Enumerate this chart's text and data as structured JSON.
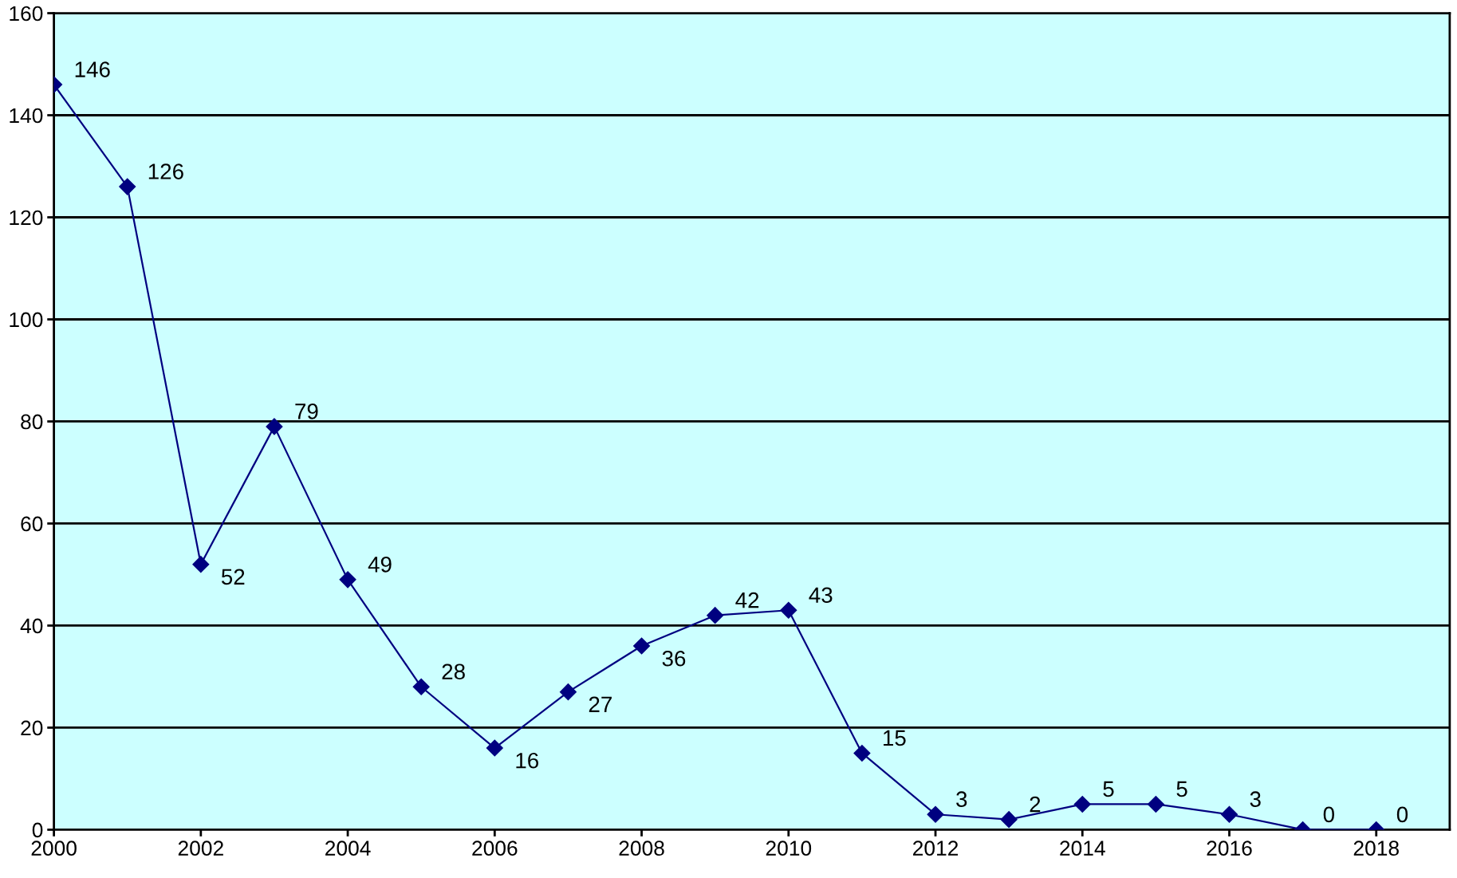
{
  "chart_data": {
    "type": "line",
    "x": [
      2000,
      2001,
      2002,
      2003,
      2004,
      2005,
      2006,
      2007,
      2008,
      2009,
      2010,
      2011,
      2012,
      2013,
      2014,
      2015,
      2016,
      2017,
      2018
    ],
    "series": [
      {
        "color": "#000080",
        "values": [
          146,
          126,
          52,
          79,
          49,
          28,
          16,
          27,
          36,
          42,
          43,
          15,
          3,
          2,
          5,
          5,
          3,
          0,
          0
        ]
      }
    ],
    "xlim": [
      2000,
      2019
    ],
    "xticks": [
      2000,
      2002,
      2004,
      2006,
      2008,
      2010,
      2012,
      2014,
      2016,
      2018
    ],
    "ylim": [
      0,
      160
    ],
    "yticks": [
      0,
      20,
      40,
      60,
      80,
      100,
      120,
      140,
      160
    ],
    "grid": "y",
    "marker": "diamond",
    "line_style": "solid",
    "data_labels": true
  }
}
